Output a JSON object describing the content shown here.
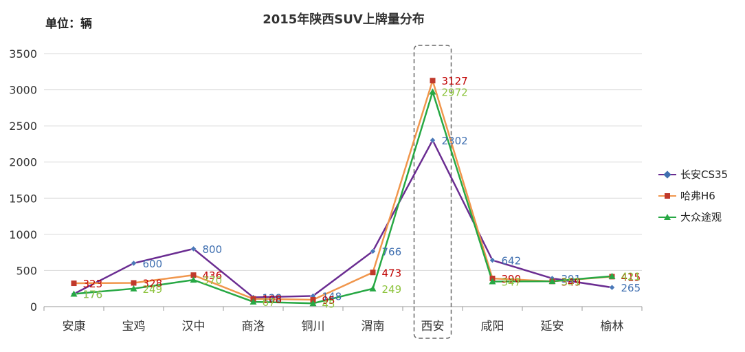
{
  "unit_label": "单位：辆",
  "chart_data": {
    "type": "line",
    "title": "2015年陕西SUV上牌量分布",
    "xlabel": "",
    "ylabel": "单位：辆",
    "ylim": [
      0,
      3500
    ],
    "yticks": [
      0,
      500,
      1000,
      1500,
      2000,
      2500,
      3000,
      3500
    ],
    "categories": [
      "安康",
      "宝鸡",
      "汉中",
      "商洛",
      "铜川",
      "渭南",
      "西安",
      "咸阳",
      "延安",
      "榆林"
    ],
    "highlight_category": "西安",
    "grid": true,
    "legend_position": "right",
    "series": [
      {
        "name": "长安CS35",
        "color": "#6a2c91",
        "label_color": "#3f6fb0",
        "marker": "diamond",
        "values": [
          176,
          600,
          800,
          128,
          148,
          766,
          2302,
          642,
          391,
          265
        ]
      },
      {
        "name": "哈弗H6",
        "color": "#f0964c",
        "label_color": "#c00000",
        "marker": "square",
        "values": [
          323,
          328,
          436,
          108,
          95,
          473,
          3127,
          390,
          349,
          415
        ]
      },
      {
        "name": "大众途观",
        "color": "#27a844",
        "label_color": "#8ec43f",
        "marker": "triangle",
        "values": [
          176,
          249,
          370,
          67,
          45,
          249,
          2972,
          347,
          351,
          421
        ]
      }
    ]
  }
}
